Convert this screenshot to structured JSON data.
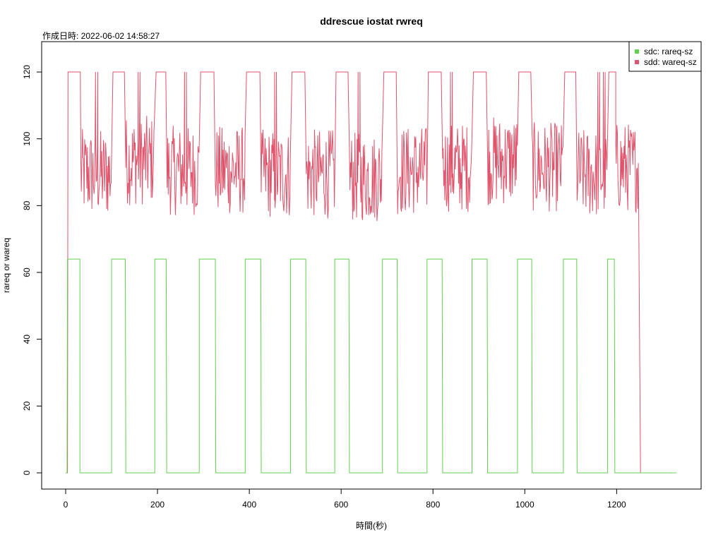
{
  "chart_data": {
    "type": "line",
    "title": "ddrescue iostat rwreq",
    "subtitle": "作成日時: 2022-06-02 14:58:27",
    "xlabel": "時間(秒)",
    "ylabel": "rareq or wareq",
    "xlim": [
      0,
      1330
    ],
    "ylim": [
      0,
      125
    ],
    "x_ticks": [
      0,
      200,
      400,
      600,
      800,
      1000,
      1200
    ],
    "y_ticks": [
      0,
      20,
      40,
      60,
      80,
      100,
      120
    ],
    "grid": false,
    "legend_position": "top-right",
    "series": [
      {
        "name": "sdc: rareq-sz",
        "color": "#61D04F",
        "segments": [
          {
            "x": [
              0,
              3,
              4,
              5,
              6,
              30,
              31,
              31,
              32,
              100,
              100,
              101,
              101,
              130,
              130,
              131,
              131,
              194,
              194,
              196,
              196,
              219,
              219,
              220,
              220,
              291,
              291,
              293,
              293,
              326,
              326,
              327,
              327,
              391,
              391,
              393,
              393,
              425,
              425,
              426,
              426,
              490,
              490,
              492,
              492,
              523,
              523,
              524,
              524,
              586,
              586,
              587,
              587,
              617,
              617,
              618,
              618,
              690,
              690,
              692,
              692,
              722,
              722,
              723,
              723,
              787,
              787,
              789,
              789,
              820,
              820,
              821,
              821,
              885,
              885,
              887,
              887,
              918,
              918,
              919,
              919,
              984,
              984,
              986,
              986,
              1015,
              1015,
              1016,
              1016,
              1084,
              1084,
              1086,
              1086,
              1113,
              1113,
              1114,
              1114,
              1180,
              1180,
              1182,
              1182,
              1195,
              1195,
              1196,
              1196,
              1330
            ],
            "y": [
              0,
              0,
              64,
              64,
              64,
              64,
              64,
              0,
              0,
              0,
              64,
              64,
              64,
              64,
              64,
              0,
              0,
              0,
              64,
              64,
              64,
              64,
              64,
              0,
              0,
              0,
              64,
              64,
              64,
              64,
              64,
              0,
              0,
              0,
              64,
              64,
              64,
              64,
              64,
              0,
              0,
              0,
              64,
              64,
              64,
              64,
              64,
              0,
              0,
              0,
              64,
              64,
              64,
              64,
              64,
              0,
              0,
              0,
              64,
              64,
              64,
              64,
              64,
              0,
              0,
              0,
              64,
              64,
              64,
              64,
              64,
              0,
              0,
              0,
              64,
              64,
              64,
              64,
              64,
              0,
              0,
              0,
              64,
              64,
              64,
              64,
              64,
              0,
              0,
              0,
              64,
              64,
              64,
              64,
              64,
              0,
              0,
              0,
              64,
              64,
              64,
              64,
              64,
              0,
              0,
              0
            ]
          }
        ]
      },
      {
        "name": "sdd: wareq-sz",
        "color": "#DF536B",
        "plateaus": [
          [
            5,
            32
          ],
          [
            103,
            128
          ],
          [
            197,
            218
          ],
          [
            294,
            323
          ],
          [
            394,
            423
          ],
          [
            493,
            521
          ],
          [
            589,
            615
          ],
          [
            693,
            720
          ],
          [
            790,
            818
          ],
          [
            888,
            916
          ],
          [
            987,
            1013
          ],
          [
            1087,
            1111
          ],
          [
            1183,
            1193
          ]
        ],
        "spikes": [
          [
            65,
            70,
            120
          ],
          [
            158,
            162,
            120
          ],
          [
            259,
            263,
            120
          ],
          [
            455,
            459,
            120
          ],
          [
            637,
            641,
            120
          ],
          [
            838,
            842,
            120
          ],
          [
            1159,
            1163,
            120
          ],
          [
            1171,
            1175,
            120
          ],
          [
            1193,
            1198,
            120
          ]
        ],
        "noisy_segments": [
          [
            33,
            100,
            88
          ],
          [
            131,
            193,
            92
          ],
          [
            221,
            291,
            89
          ],
          [
            326,
            391,
            89
          ],
          [
            426,
            490,
            88
          ],
          [
            524,
            586,
            88
          ],
          [
            618,
            690,
            87
          ],
          [
            723,
            787,
            89
          ],
          [
            821,
            885,
            90
          ],
          [
            919,
            984,
            92
          ],
          [
            1016,
            1084,
            90
          ],
          [
            1114,
            1180,
            88
          ],
          [
            1198,
            1248,
            90
          ]
        ],
        "drop_end": 1252,
        "tail_end": 1330,
        "noise_range": [
          -12,
          15
        ]
      }
    ]
  }
}
